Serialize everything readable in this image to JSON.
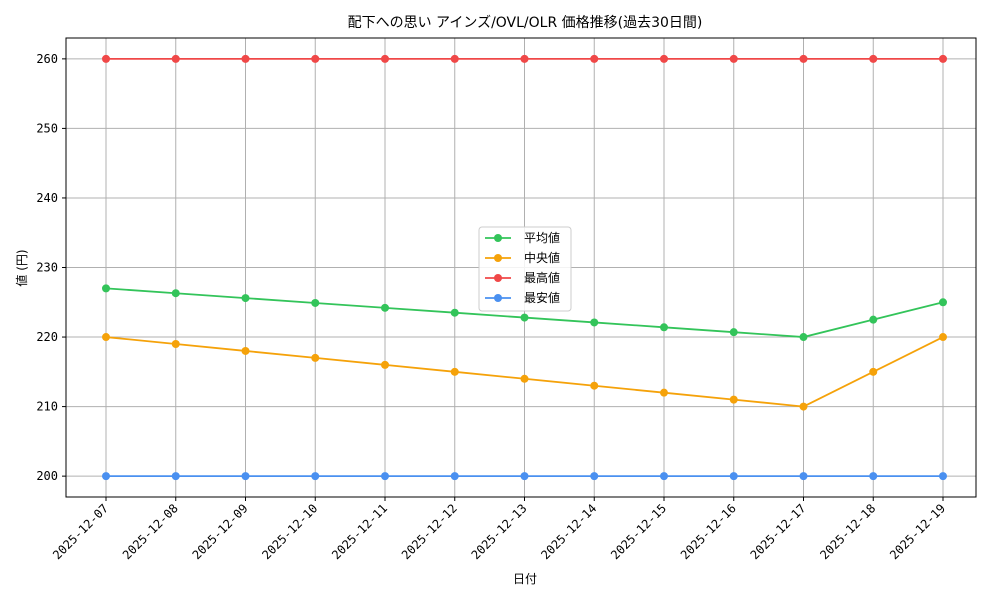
{
  "chart_data": {
    "type": "line",
    "title": "配下への思い アインズ/OVL/OLR 価格推移(過去30日間)",
    "xlabel": "日付",
    "ylabel": "値 (円)",
    "categories": [
      "2025-12-07",
      "2025-12-08",
      "2025-12-09",
      "2025-12-10",
      "2025-12-11",
      "2025-12-12",
      "2025-12-13",
      "2025-12-14",
      "2025-12-15",
      "2025-12-16",
      "2025-12-17",
      "2025-12-18",
      "2025-12-19"
    ],
    "ylim": [
      197,
      263
    ],
    "yticks": [
      200,
      210,
      220,
      230,
      240,
      250,
      260
    ],
    "grid": true,
    "legend_position": "center",
    "series": [
      {
        "name": "平均値",
        "color": "#33c45a",
        "values": [
          227,
          226.3,
          225.6,
          224.9,
          224.2,
          223.5,
          222.8,
          222.1,
          221.4,
          220.7,
          220,
          222.5,
          225
        ]
      },
      {
        "name": "中央値",
        "color": "#f5a20a",
        "values": [
          220,
          219,
          218,
          217,
          216,
          215,
          214,
          213,
          212,
          211,
          210,
          215,
          220
        ]
      },
      {
        "name": "最高値",
        "color": "#f04848",
        "values": [
          260,
          260,
          260,
          260,
          260,
          260,
          260,
          260,
          260,
          260,
          260,
          260,
          260
        ]
      },
      {
        "name": "最安値",
        "color": "#4a90f0",
        "values": [
          200,
          200,
          200,
          200,
          200,
          200,
          200,
          200,
          200,
          200,
          200,
          200,
          200
        ]
      }
    ]
  }
}
